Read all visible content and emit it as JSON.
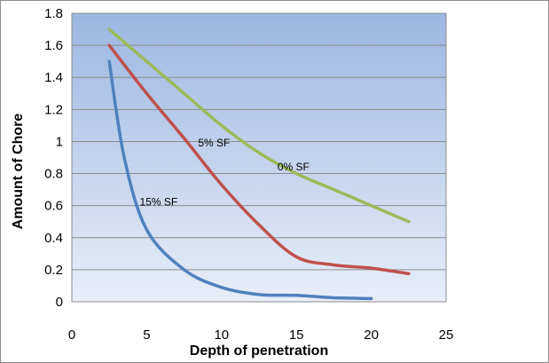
{
  "chart_data": {
    "type": "line",
    "title": "",
    "xlabel": "Depth of penetration",
    "ylabel": "Amount of Chore",
    "xlim": [
      0,
      25
    ],
    "ylim": [
      0,
      1.8
    ],
    "xticks": [
      0,
      5,
      10,
      15,
      20,
      25
    ],
    "yticks": [
      0,
      0.2,
      0.4,
      0.6,
      0.8,
      1,
      1.2,
      1.4,
      1.6,
      1.8
    ],
    "grid": true,
    "legend": "none",
    "series": [
      {
        "name": "0% SF",
        "color": "#9bbb59",
        "x": [
          2.5,
          5,
          7.5,
          10,
          12.5,
          15,
          17.5,
          20,
          22.5
        ],
        "y": [
          1.7,
          1.5,
          1.3,
          1.1,
          0.93,
          0.8,
          0.7,
          0.6,
          0.5
        ]
      },
      {
        "name": "5% SF",
        "color": "#c0504d",
        "x": [
          2.5,
          5,
          7.5,
          10,
          12.5,
          15,
          17.5,
          20,
          22.5
        ],
        "y": [
          1.6,
          1.3,
          1.02,
          0.73,
          0.48,
          0.28,
          0.23,
          0.21,
          0.175
        ]
      },
      {
        "name": "15% SF",
        "color": "#4f81bd",
        "x": [
          2.5,
          3.5,
          5,
          7.5,
          10,
          12.5,
          15,
          17.5,
          20
        ],
        "y": [
          1.5,
          0.9,
          0.45,
          0.2,
          0.09,
          0.045,
          0.04,
          0.025,
          0.02
        ]
      }
    ]
  }
}
